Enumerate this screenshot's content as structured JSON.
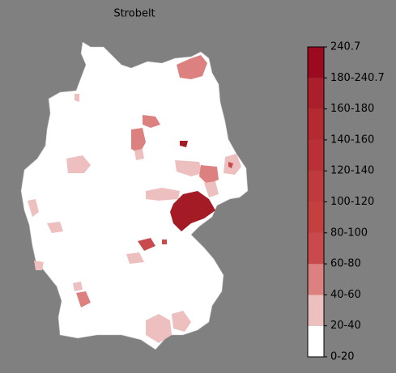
{
  "title": "Strobelt",
  "legend": {
    "ticks": [
      "0-20",
      "20-40",
      "40-60",
      "60-80",
      "80-100",
      "100-120",
      "120-140",
      "140-160",
      "160-180",
      "180-240.7",
      "240.7"
    ],
    "colors": [
      "#ffffff",
      "#eebfbf",
      "#dc8080",
      "#c94a4d",
      "#c4403f",
      "#bf3a3c",
      "#ba3036",
      "#b52a31",
      "#ab1f2a",
      "#9b0a1e"
    ]
  }
}
